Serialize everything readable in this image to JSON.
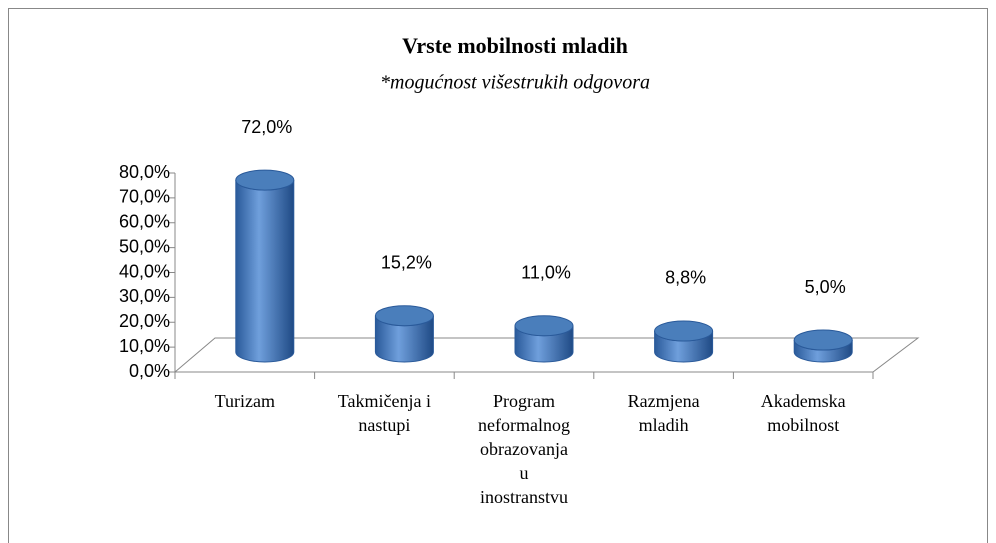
{
  "chart_data": {
    "type": "bar3d",
    "title": "Vrste mobilnosti mladih",
    "subtitle": "*mogućnost višestrukih odgovora",
    "categories": [
      "Turizam",
      "Takmičenja i\nnastupi",
      "Program\nneformalnog\nobrazovanja\nu\ninostranstvu",
      "Razmjena\nmladih",
      "Akademska\nmobilnost"
    ],
    "values": [
      72.0,
      15.2,
      11.0,
      8.8,
      5.0
    ],
    "value_labels": [
      "72,0%",
      "15,2%",
      "11,0%",
      "8,8%",
      "5,0%"
    ],
    "color": "#4a7ebb",
    "ylim": [
      0,
      80
    ],
    "yticks": [
      {
        "value": 0,
        "label": "0,0%"
      },
      {
        "value": 10,
        "label": "10,0%"
      },
      {
        "value": 20,
        "label": "20,0%"
      },
      {
        "value": 30,
        "label": "30,0%"
      },
      {
        "value": 40,
        "label": "40,0%"
      },
      {
        "value": 50,
        "label": "50,0%"
      },
      {
        "value": 60,
        "label": "60,0%"
      },
      {
        "value": 70,
        "label": "70,0%"
      },
      {
        "value": 80,
        "label": "80,0%"
      }
    ]
  }
}
